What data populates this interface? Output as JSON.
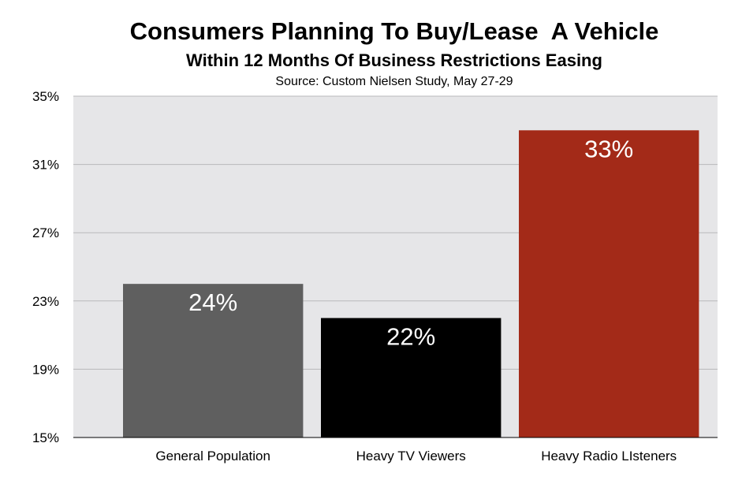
{
  "chart_data": {
    "type": "bar",
    "title": "Consumers Planning To Buy/Lease  A Vehicle",
    "subtitle": "Within 12 Months Of Business Restrictions Easing",
    "source": "Source: Custom Nielsen Study, May 27-29",
    "categories": [
      "General Population",
      "Heavy TV Viewers",
      "Heavy Radio LIsteners"
    ],
    "values": [
      24,
      22,
      33
    ],
    "data_labels": [
      "24%",
      "22%",
      "33%"
    ],
    "bar_colors": [
      "#5f5f5f",
      "#000000",
      "#a32a18"
    ],
    "ylim": [
      15,
      35
    ],
    "yticks": [
      15,
      19,
      23,
      27,
      31,
      35
    ],
    "ytick_labels": [
      "15%",
      "19%",
      "23%",
      "27%",
      "31%",
      "35%"
    ],
    "xlabel": "",
    "ylabel": "",
    "grid": true,
    "legend": "none",
    "plot_background": "#e6e6e8",
    "grid_color": "#b9b9bb"
  }
}
